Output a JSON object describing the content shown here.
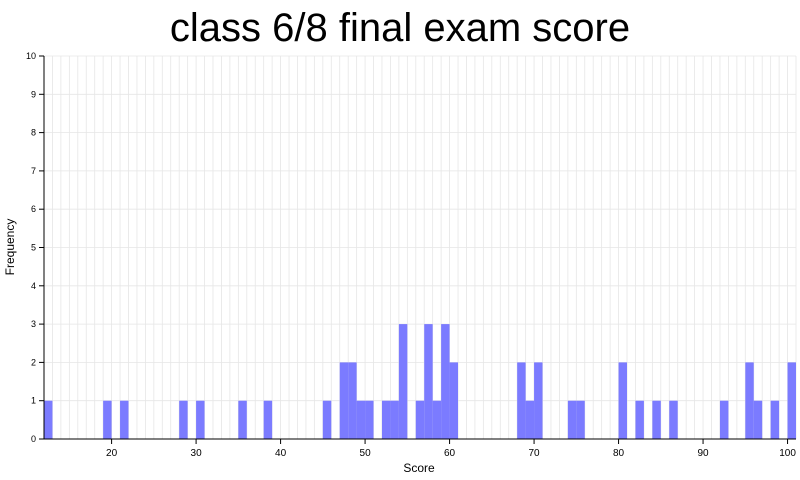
{
  "chart_data": {
    "type": "bar",
    "title": "class 6/8 final exam score",
    "xlabel": "Score",
    "ylabel": "Frequency",
    "xlim": [
      12,
      101
    ],
    "ylim": [
      0,
      10
    ],
    "xticks": [
      20,
      30,
      40,
      50,
      60,
      70,
      80,
      90,
      100
    ],
    "yticks": [
      0,
      1,
      2,
      3,
      4,
      5,
      6,
      7,
      8,
      9,
      10
    ],
    "grid": true,
    "bar_width": 1,
    "bins": [
      {
        "score": 12,
        "count": 1
      },
      {
        "score": 19,
        "count": 1
      },
      {
        "score": 21,
        "count": 1
      },
      {
        "score": 28,
        "count": 1
      },
      {
        "score": 30,
        "count": 1
      },
      {
        "score": 35,
        "count": 1
      },
      {
        "score": 38,
        "count": 1
      },
      {
        "score": 45,
        "count": 1
      },
      {
        "score": 47,
        "count": 2
      },
      {
        "score": 48,
        "count": 2
      },
      {
        "score": 49,
        "count": 1
      },
      {
        "score": 50,
        "count": 1
      },
      {
        "score": 52,
        "count": 1
      },
      {
        "score": 53,
        "count": 1
      },
      {
        "score": 54,
        "count": 3
      },
      {
        "score": 56,
        "count": 1
      },
      {
        "score": 57,
        "count": 3
      },
      {
        "score": 58,
        "count": 1
      },
      {
        "score": 59,
        "count": 3
      },
      {
        "score": 60,
        "count": 2
      },
      {
        "score": 68,
        "count": 2
      },
      {
        "score": 69,
        "count": 1
      },
      {
        "score": 70,
        "count": 2
      },
      {
        "score": 74,
        "count": 1
      },
      {
        "score": 75,
        "count": 1
      },
      {
        "score": 80,
        "count": 2
      },
      {
        "score": 82,
        "count": 1
      },
      {
        "score": 84,
        "count": 1
      },
      {
        "score": 86,
        "count": 1
      },
      {
        "score": 92,
        "count": 1
      },
      {
        "score": 95,
        "count": 2
      },
      {
        "score": 96,
        "count": 1
      },
      {
        "score": 98,
        "count": 1
      },
      {
        "score": 100,
        "count": 2
      }
    ],
    "colors": {
      "bar": "#7b7bff",
      "grid": "#e6e6e6",
      "axis": "#000000"
    }
  }
}
